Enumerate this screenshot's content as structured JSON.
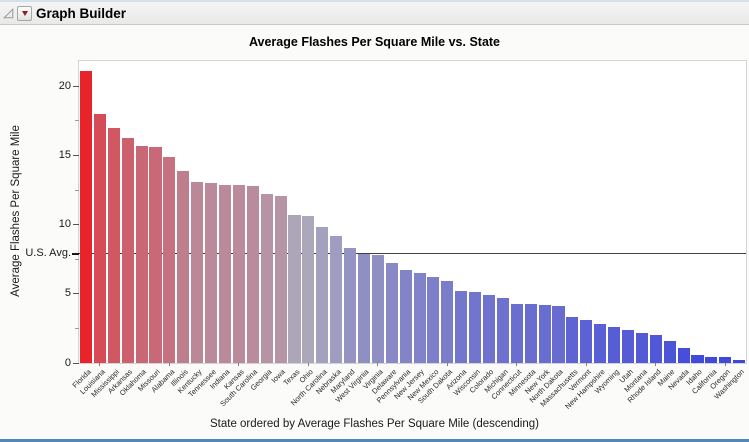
{
  "window": {
    "title": "Graph Builder",
    "icons": [
      "disclosure-triangle-icon",
      "red-triangle-menu-icon"
    ]
  },
  "chart_data": {
    "type": "bar",
    "title": "Average Flashes Per Square Mile vs. State",
    "xlabel": "State ordered by Average Flashes Per Square Mile (descending)",
    "ylabel": "Average Flashes Per Square Mile",
    "ylim": [
      0,
      21.8
    ],
    "yticks": [
      0,
      5,
      10,
      15,
      20
    ],
    "yticks_minor": [
      2.5,
      7.5,
      12.5,
      17.5
    ],
    "grid": false,
    "legend": "none",
    "reference_line": {
      "label": "U.S. Avg.",
      "value": 7.9
    },
    "color_ramp": {
      "high": "#e8242a",
      "mid": "#aca8bc",
      "low": "#3b45dd",
      "mid_value": 10.5
    },
    "categories": [
      "Florida",
      "Louisiana",
      "Mississippi",
      "Arkansas",
      "Oklahoma",
      "Missouri",
      "Alabama",
      "Illinois",
      "Kentucky",
      "Tennessee",
      "Indiana",
      "Kansas",
      "South Carolina",
      "Georgia",
      "Iowa",
      "Texas",
      "Ohio",
      "North Carolina",
      "Nebraska",
      "Maryland",
      "West Virginia",
      "Virginia",
      "Delaware",
      "Pennsylvania",
      "New Jersey",
      "New Mexico",
      "South Dakota",
      "Arizona",
      "Wisconsin",
      "Colorado",
      "Michigan",
      "Connecticut",
      "Minnesota",
      "New York",
      "North Dakota",
      "Massachusetts",
      "Vermont",
      "New Hampshire",
      "Wyoming",
      "Utah",
      "Montana",
      "Rhode Island",
      "Maine",
      "Nevada",
      "Idaho",
      "California",
      "Oregon",
      "Washington"
    ],
    "values": [
      21.1,
      18.0,
      17.0,
      16.3,
      15.7,
      15.6,
      14.9,
      13.9,
      13.1,
      13.0,
      12.9,
      12.85,
      12.8,
      12.2,
      12.1,
      10.7,
      10.6,
      9.8,
      9.2,
      8.3,
      7.9,
      7.8,
      7.2,
      6.7,
      6.5,
      6.2,
      5.9,
      5.2,
      5.1,
      4.9,
      4.7,
      4.3,
      4.25,
      4.2,
      4.15,
      3.3,
      3.1,
      2.8,
      2.6,
      2.4,
      2.2,
      2.0,
      1.6,
      1.1,
      0.6,
      0.45,
      0.4,
      0.25
    ]
  }
}
